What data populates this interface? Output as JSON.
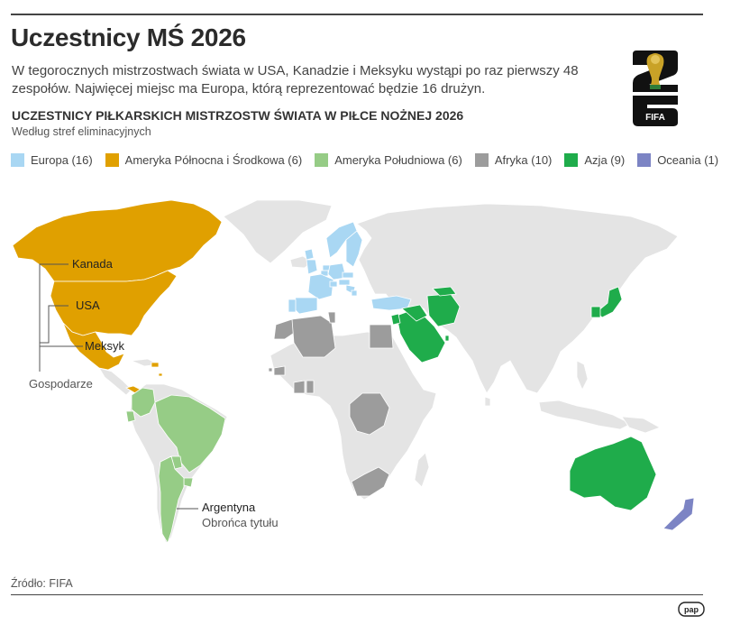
{
  "title": "Uczestnicy MŚ 2026",
  "intro": "W tegorocznych mistrzostwach świata w USA, Kanadzie i Meksyku wystąpi po raz pierwszy 48 zespołów. Najwięcej miejsc ma Europa, którą reprezentować będzie 16 drużyn.",
  "subtitle": "UCZESTNICY PIŁKARSKICH MISTRZOSTW ŚWIATA W PIŁCE NOŻNEJ 2026",
  "subsubtitle": "Według stref eliminacyjnych",
  "legend": [
    {
      "label": "Europa (16)",
      "color": "#a9d7f3",
      "teams": 16
    },
    {
      "label": "Ameryka Północna i Środkowa (6)",
      "color": "#e0a000",
      "teams": 6
    },
    {
      "label": "Ameryka Południowa (6)",
      "color": "#96cc86",
      "teams": 6
    },
    {
      "label": "Afryka (10)",
      "color": "#9c9c9c",
      "teams": 10
    },
    {
      "label": "Azja (9)",
      "color": "#1fac4b",
      "teams": 9
    },
    {
      "label": "Oceania (1)",
      "color": "#7c84c4",
      "teams": 1
    }
  ],
  "map": {
    "other_color": "#e4e4e4",
    "labels": {
      "kanada": "Kanada",
      "usa": "USA",
      "meksyk": "Meksyk",
      "gospodarze": "Gospodarze",
      "argentyna": "Argentyna",
      "obronca": "Obrońca tytułu"
    }
  },
  "source": "Źródło: FIFA",
  "fifa_logo": {
    "text": "FIFA",
    "numbers": "26"
  },
  "pap_logo": {
    "text": "pap"
  }
}
